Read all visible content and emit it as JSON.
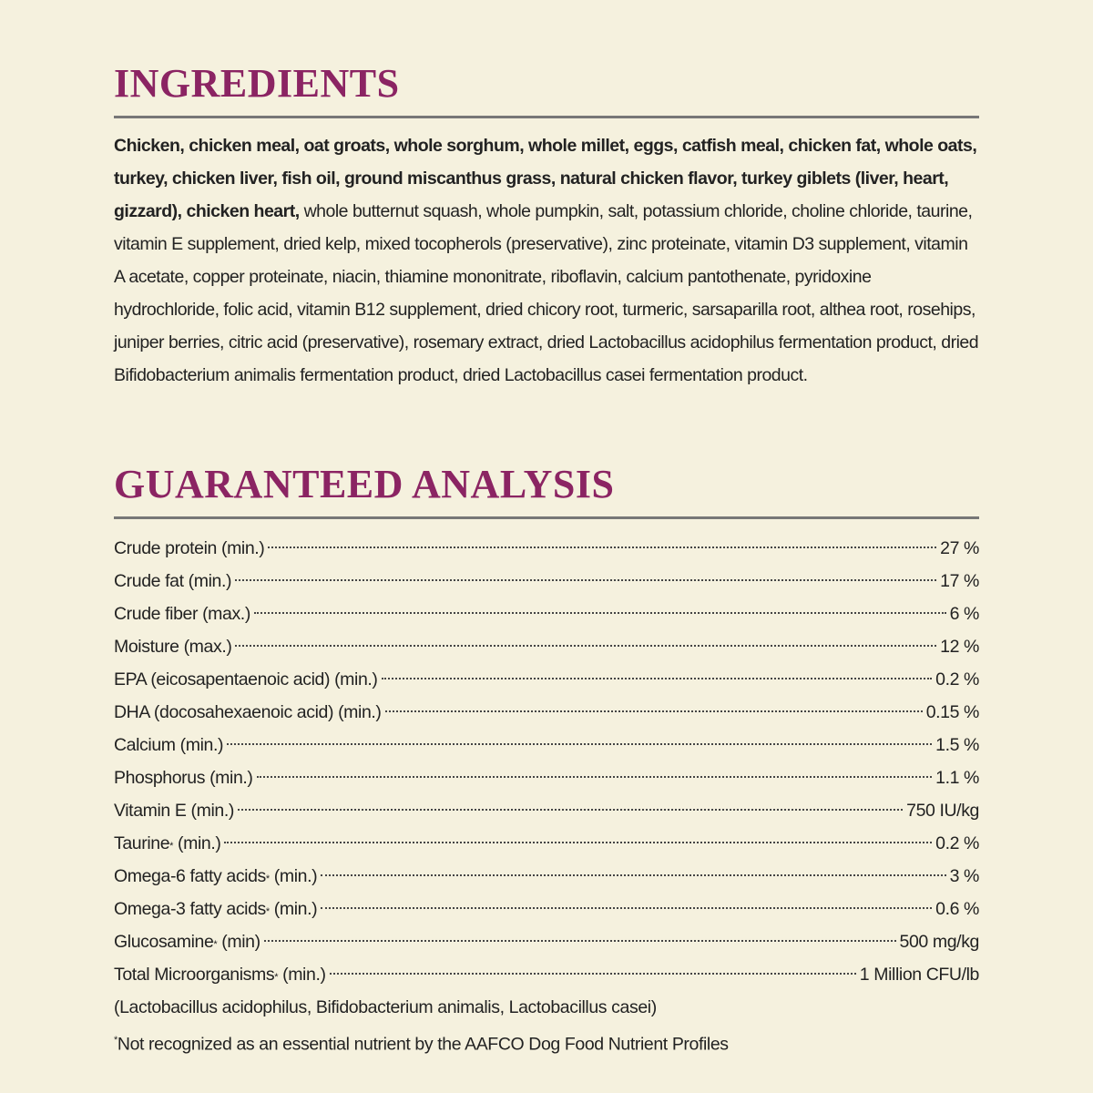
{
  "ingredients": {
    "title": "INGREDIENTS",
    "bold_text": "Chicken, chicken meal, oat groats, whole sorghum, whole millet, eggs, catfish meal, chicken fat, whole oats, turkey, chicken liver, fish oil, ground miscanthus grass, natural chicken flavor, turkey giblets (liver, heart, gizzard), chicken heart,",
    "regular_text": "whole butternut squash, whole pumpkin, salt, potassium chloride, choline chloride, taurine, vitamin E supplement, dried kelp, mixed tocopherols (preservative), zinc proteinate, vitamin D3 supplement, vitamin A acetate, copper proteinate, niacin, thiamine mononitrate, riboflavin, calcium pantothenate, pyridoxine hydrochloride, folic acid, vitamin B12 supplement, dried chicory root, turmeric, sarsaparilla root, althea root, rosehips, juniper berries, citric acid (preservative), rosemary extract, dried Lactobacillus acidophilus fermentation product, dried Bifidobacterium animalis fermentation product, dried Lactobacillus casei fermentation product."
  },
  "analysis": {
    "title": "GUARANTEED ANALYSIS",
    "rows": [
      {
        "label": "Crude protein (min.)",
        "value": "27 %"
      },
      {
        "label": "Crude fat (min.)",
        "value": "17 %"
      },
      {
        "label": "Crude fiber (max.)",
        "value": "6 %"
      },
      {
        "label": "Moisture (max.)",
        "value": "12 %"
      },
      {
        "label": "EPA (eicosapentaenoic acid) (min.)",
        "value": "0.2 %"
      },
      {
        "label": "DHA (docosahexaenoic acid) (min.)",
        "value": "0.15 %"
      },
      {
        "label": "Calcium (min.)",
        "value": "1.5 %"
      },
      {
        "label": "Phosphorus (min.)",
        "value": "1.1 %"
      },
      {
        "label": "Vitamin E (min.)",
        "value": "750 IU/kg"
      },
      {
        "label": "Taurine",
        "note": "*",
        "qualifier": "(min.)",
        "value": "0.2 %"
      },
      {
        "label": "Omega-6 fatty acids",
        "note": "*",
        "qualifier": "(min.)",
        "value": "3 %"
      },
      {
        "label": "Omega-3 fatty acids",
        "note": "*",
        "qualifier": "(min.)",
        "value": "0.6 %"
      },
      {
        "label": "Glucosamine",
        "note": "*",
        "qualifier": "(min)",
        "value": "500 mg/kg"
      },
      {
        "label": "Total Microorganisms",
        "note": "*",
        "qualifier": "(min.)",
        "value": "1 Million CFU/lb"
      }
    ],
    "organisms": "(Lactobacillus acidophilus, Bifidobacterium animalis, Lactobacillus casei)",
    "footnote_mark": "*",
    "footnote": "Not recognized as an essential nutrient by the AAFCO Dog Food Nutrient Profiles"
  }
}
